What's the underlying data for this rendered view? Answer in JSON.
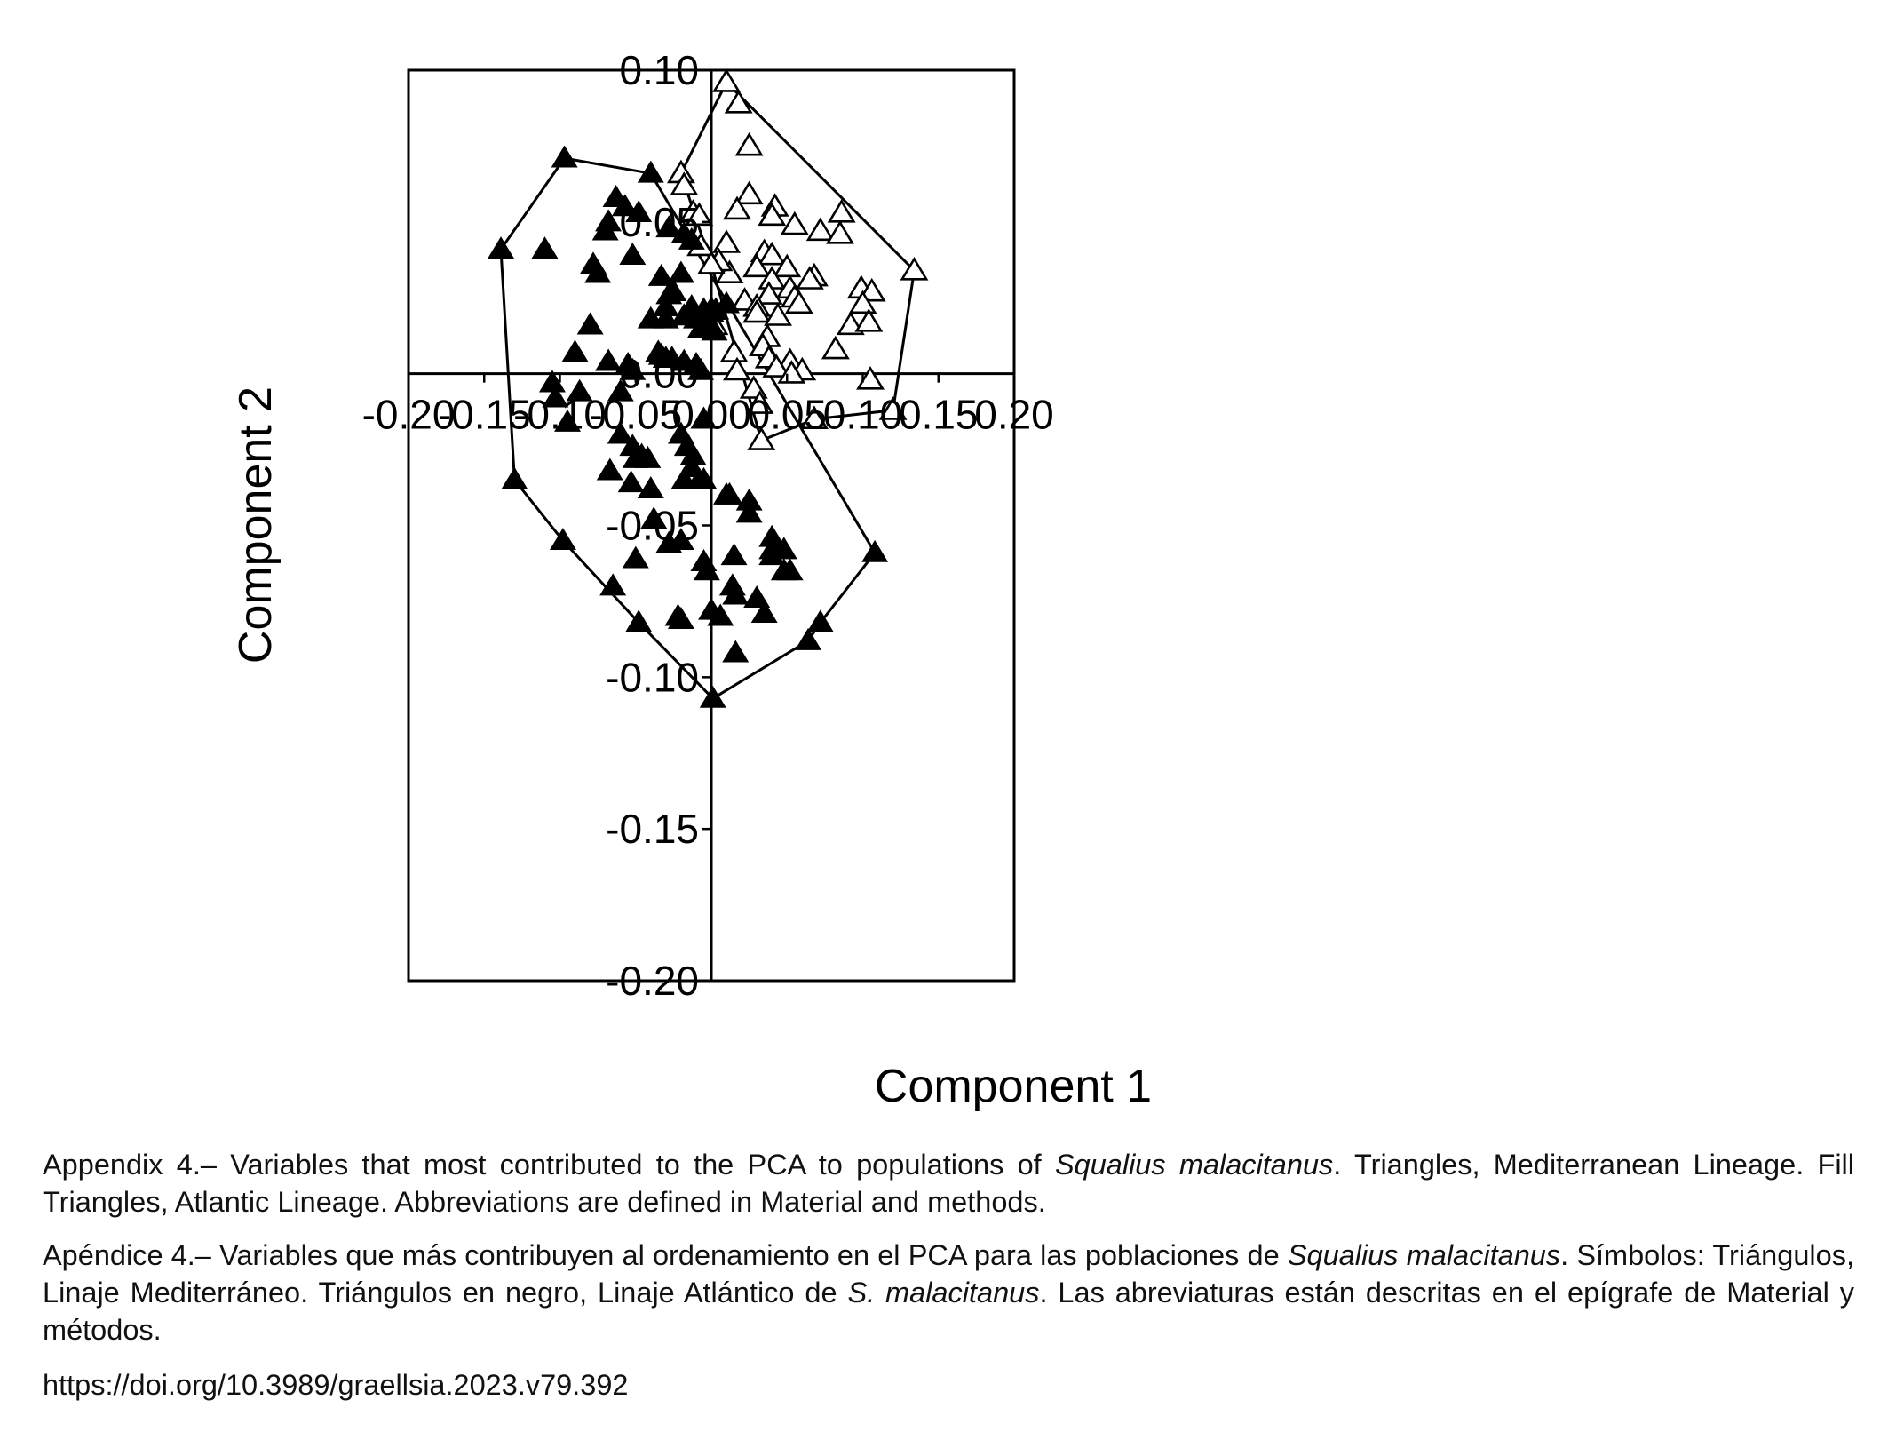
{
  "chart_data": {
    "type": "scatter",
    "xlabel": "Component 1",
    "ylabel": "Component 2",
    "xlim": [
      -0.2,
      0.2
    ],
    "ylim": [
      -0.2,
      0.1
    ],
    "xticks": [
      "-0.20",
      "-0.15",
      "-0.10",
      "-0.05",
      "0.00",
      "0.05",
      "0.10",
      "0.15",
      "0.20"
    ],
    "yticks": [
      "0.10",
      "0.05",
      "0.00",
      "-0.05",
      "-0.10",
      "-0.15",
      "-0.20"
    ],
    "xtick_values": [
      -0.2,
      -0.15,
      -0.1,
      -0.05,
      0.0,
      0.05,
      0.1,
      0.15,
      0.2
    ],
    "ytick_values": [
      0.1,
      0.05,
      0.0,
      -0.05,
      -0.1,
      -0.15,
      -0.2
    ],
    "zero_lines": true,
    "series": [
      {
        "marker": "open-triangle",
        "color": "#000000",
        "points": [
          [
            0.01,
            0.096
          ],
          [
            0.018,
            0.089
          ],
          [
            0.025,
            0.075
          ],
          [
            -0.02,
            0.066
          ],
          [
            -0.018,
            0.062
          ],
          [
            0.025,
            0.059
          ],
          [
            0.042,
            0.055
          ],
          [
            0.04,
            0.052
          ],
          [
            0.017,
            0.054
          ],
          [
            -0.012,
            0.053
          ],
          [
            -0.008,
            0.052
          ],
          [
            0.055,
            0.049
          ],
          [
            0.072,
            0.047
          ],
          [
            0.086,
            0.053
          ],
          [
            0.085,
            0.046
          ],
          [
            0.01,
            0.043
          ],
          [
            -0.007,
            0.042
          ],
          [
            0.035,
            0.04
          ],
          [
            0.04,
            0.039
          ],
          [
            0.03,
            0.035
          ],
          [
            0.05,
            0.035
          ],
          [
            0.068,
            0.032
          ],
          [
            0.065,
            0.031
          ],
          [
            0.099,
            0.028
          ],
          [
            0.106,
            0.027
          ],
          [
            0.134,
            0.034
          ],
          [
            0.012,
            0.033
          ],
          [
            0.005,
            0.037
          ],
          [
            0.0,
            0.036
          ],
          [
            0.04,
            0.031
          ],
          [
            0.052,
            0.028
          ],
          [
            0.038,
            0.026
          ],
          [
            0.055,
            0.025
          ],
          [
            0.1,
            0.023
          ],
          [
            0.022,
            0.024
          ],
          [
            0.03,
            0.022
          ],
          [
            0.03,
            0.02
          ],
          [
            0.058,
            0.023
          ],
          [
            0.044,
            0.019
          ],
          [
            0.0,
            0.021
          ],
          [
            0.002,
            0.016
          ],
          [
            0.092,
            0.016
          ],
          [
            0.104,
            0.017
          ],
          [
            0.037,
            0.012
          ],
          [
            0.034,
            0.009
          ],
          [
            0.082,
            0.008
          ],
          [
            0.015,
            0.007
          ],
          [
            0.038,
            0.005
          ],
          [
            0.052,
            0.004
          ],
          [
            0.043,
            0.002
          ],
          [
            0.06,
            0.001
          ],
          [
            0.053,
            0.0
          ],
          [
            0.017,
            0.001
          ],
          [
            0.105,
            -0.002
          ],
          [
            0.028,
            -0.005
          ],
          [
            0.032,
            -0.01
          ],
          [
            0.068,
            -0.015
          ],
          [
            0.12,
            -0.012
          ],
          [
            0.033,
            -0.022
          ]
        ],
        "hull": [
          [
            0.01,
            0.096
          ],
          [
            0.134,
            0.034
          ],
          [
            0.12,
            -0.012
          ],
          [
            0.068,
            -0.015
          ],
          [
            0.033,
            -0.022
          ],
          [
            0.0,
            0.036
          ],
          [
            -0.02,
            0.066
          ],
          [
            0.01,
            0.096
          ]
        ]
      },
      {
        "marker": "filled-triangle",
        "color": "#000000",
        "points": [
          [
            -0.097,
            0.071
          ],
          [
            -0.04,
            0.066
          ],
          [
            -0.063,
            0.058
          ],
          [
            -0.057,
            0.055
          ],
          [
            -0.048,
            0.053
          ],
          [
            -0.068,
            0.05
          ],
          [
            -0.07,
            0.047
          ],
          [
            -0.028,
            0.048
          ],
          [
            -0.018,
            0.046
          ],
          [
            -0.013,
            0.044
          ],
          [
            -0.11,
            0.041
          ],
          [
            -0.139,
            0.041
          ],
          [
            -0.052,
            0.039
          ],
          [
            -0.078,
            0.036
          ],
          [
            -0.075,
            0.033
          ],
          [
            -0.033,
            0.032
          ],
          [
            -0.02,
            0.033
          ],
          [
            -0.028,
            0.026
          ],
          [
            -0.025,
            0.027
          ],
          [
            -0.03,
            0.022
          ],
          [
            -0.018,
            0.019
          ],
          [
            -0.013,
            0.022
          ],
          [
            -0.005,
            0.021
          ],
          [
            0.003,
            0.021
          ],
          [
            0.01,
            0.023
          ],
          [
            0.0,
            0.02
          ],
          [
            -0.03,
            0.018
          ],
          [
            -0.04,
            0.018
          ],
          [
            -0.01,
            0.018
          ],
          [
            -0.007,
            0.015
          ],
          [
            -0.08,
            0.016
          ],
          [
            -0.002,
            0.015
          ],
          [
            0.002,
            0.014
          ],
          [
            -0.09,
            0.007
          ],
          [
            -0.068,
            0.004
          ],
          [
            -0.055,
            0.003
          ],
          [
            -0.035,
            0.007
          ],
          [
            -0.033,
            0.006
          ],
          [
            -0.026,
            0.005
          ],
          [
            -0.03,
            0.005
          ],
          [
            -0.018,
            0.004
          ],
          [
            -0.01,
            0.003
          ],
          [
            -0.052,
            0.001
          ],
          [
            -0.007,
            0.001
          ],
          [
            -0.105,
            -0.003
          ],
          [
            -0.087,
            -0.006
          ],
          [
            -0.06,
            -0.006
          ],
          [
            -0.095,
            -0.016
          ],
          [
            -0.103,
            -0.008
          ],
          [
            -0.005,
            -0.015
          ],
          [
            -0.06,
            -0.02
          ],
          [
            -0.02,
            -0.02
          ],
          [
            -0.016,
            -0.024
          ],
          [
            -0.052,
            -0.024
          ],
          [
            -0.05,
            -0.028
          ],
          [
            -0.046,
            -0.027
          ],
          [
            -0.042,
            -0.028
          ],
          [
            -0.012,
            -0.027
          ],
          [
            -0.067,
            -0.032
          ],
          [
            -0.13,
            -0.035
          ],
          [
            -0.053,
            -0.036
          ],
          [
            -0.04,
            -0.038
          ],
          [
            -0.018,
            -0.035
          ],
          [
            -0.008,
            -0.035
          ],
          [
            -0.005,
            -0.035
          ],
          [
            -0.013,
            -0.031
          ],
          [
            0.01,
            -0.04
          ],
          [
            0.012,
            -0.04
          ],
          [
            0.025,
            -0.042
          ],
          [
            0.025,
            -0.046
          ],
          [
            -0.038,
            -0.048
          ],
          [
            -0.028,
            -0.056
          ],
          [
            -0.02,
            -0.055
          ],
          [
            0.04,
            -0.054
          ],
          [
            0.04,
            -0.058
          ],
          [
            0.048,
            -0.058
          ],
          [
            0.04,
            -0.06
          ],
          [
            0.015,
            -0.06
          ],
          [
            -0.005,
            -0.062
          ],
          [
            -0.003,
            -0.065
          ],
          [
            0.048,
            -0.065
          ],
          [
            0.052,
            -0.065
          ],
          [
            0.108,
            -0.059
          ],
          [
            -0.05,
            -0.061
          ],
          [
            -0.098,
            -0.055
          ],
          [
            -0.065,
            -0.07
          ],
          [
            0.014,
            -0.07
          ],
          [
            0.016,
            -0.073
          ],
          [
            0.03,
            -0.074
          ],
          [
            0.035,
            -0.079
          ],
          [
            0.0,
            -0.078
          ],
          [
            0.006,
            -0.08
          ],
          [
            -0.022,
            -0.08
          ],
          [
            -0.02,
            -0.081
          ],
          [
            -0.048,
            -0.082
          ],
          [
            0.072,
            -0.082
          ],
          [
            0.064,
            -0.088
          ],
          [
            0.016,
            -0.092
          ],
          [
            0.001,
            -0.107
          ]
        ],
        "hull": [
          [
            -0.139,
            0.041
          ],
          [
            -0.097,
            0.071
          ],
          [
            -0.04,
            0.066
          ],
          [
            0.108,
            -0.059
          ],
          [
            0.072,
            -0.082
          ],
          [
            0.064,
            -0.088
          ],
          [
            0.001,
            -0.107
          ],
          [
            -0.048,
            -0.082
          ],
          [
            -0.098,
            -0.055
          ],
          [
            -0.13,
            -0.035
          ],
          [
            -0.139,
            0.041
          ]
        ]
      }
    ]
  },
  "caption_en": {
    "lead": "Appendix 4.– Variables that most contributed to the PCA to populations of ",
    "species": "Squalius malacitanus",
    "tail": ". Triangles, Mediterranean Lineage. Fill Triangles, Atlantic Lineage. Abbreviations are defined in Material and methods."
  },
  "caption_es": {
    "lead": "Apéndice 4.– Variables que más contribuyen al ordenamiento en el PCA para las poblaciones de ",
    "species": "Squalius malacitanus",
    "mid": ". Símbolos: Triángulos, Linaje Mediterráneo. Triángulos en negro, Linaje Atlántico de ",
    "species_short": "S. malacitanus",
    "tail": ". Las abreviaturas están descritas en el epígrafe de Material y métodos."
  },
  "doi": "https://doi.org/10.3989/graellsia.2023.v79.392"
}
